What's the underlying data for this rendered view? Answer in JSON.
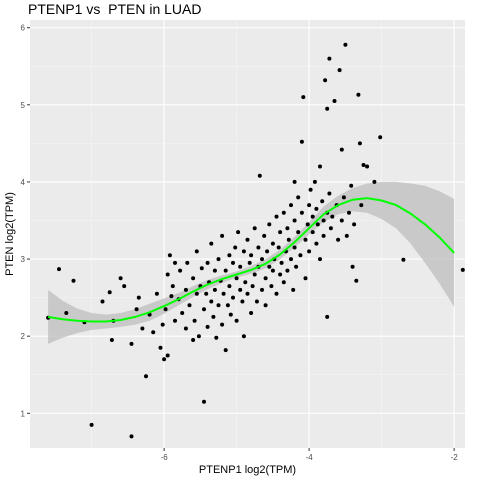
{
  "chart_data": {
    "type": "scatter",
    "title": "PTENP1 vs  PTEN in LUAD",
    "xlabel": "PTENP1 log2(TPM)",
    "ylabel": "PTEN log2(TPM)",
    "xlim": [
      -7.85,
      -1.85
    ],
    "ylim": [
      0.55,
      6.1
    ],
    "x_ticks": [
      -6,
      -4,
      -2
    ],
    "y_ticks": [
      1,
      2,
      3,
      4,
      5,
      6
    ],
    "grid": true,
    "background": "#ebebeb",
    "point_color": "#000000",
    "smooth_color": "#00ff00",
    "ribbon_color": "#bebebe",
    "smooth_x": [
      -7.6,
      -7.4,
      -7.2,
      -7.0,
      -6.8,
      -6.6,
      -6.4,
      -6.2,
      -6.0,
      -5.8,
      -5.6,
      -5.4,
      -5.2,
      -5.0,
      -4.8,
      -4.6,
      -4.4,
      -4.2,
      -4.0,
      -3.8,
      -3.6,
      -3.4,
      -3.2,
      -3.0,
      -2.8,
      -2.6,
      -2.4,
      -2.2,
      -2.0
    ],
    "smooth_y": [
      2.25,
      2.22,
      2.2,
      2.19,
      2.19,
      2.21,
      2.25,
      2.31,
      2.39,
      2.48,
      2.58,
      2.67,
      2.74,
      2.8,
      2.86,
      2.94,
      3.06,
      3.22,
      3.4,
      3.58,
      3.7,
      3.77,
      3.79,
      3.76,
      3.7,
      3.59,
      3.45,
      3.28,
      3.08
    ],
    "ribbon_lower": [
      1.9,
      1.98,
      2.04,
      2.08,
      2.1,
      2.12,
      2.15,
      2.2,
      2.29,
      2.4,
      2.51,
      2.61,
      2.69,
      2.76,
      2.81,
      2.88,
      3.0,
      3.15,
      3.32,
      3.48,
      3.58,
      3.62,
      3.6,
      3.52,
      3.4,
      3.2,
      2.95,
      2.68,
      2.38
    ],
    "ribbon_upper": [
      2.6,
      2.46,
      2.36,
      2.3,
      2.28,
      2.3,
      2.35,
      2.42,
      2.49,
      2.56,
      2.65,
      2.73,
      2.79,
      2.84,
      2.91,
      3.0,
      3.12,
      3.29,
      3.48,
      3.68,
      3.82,
      3.92,
      3.98,
      4.0,
      4.0,
      3.98,
      3.95,
      3.88,
      3.78
    ],
    "points": [
      [
        -7.6,
        2.24
      ],
      [
        -7.45,
        2.87
      ],
      [
        -7.35,
        2.3
      ],
      [
        -7.25,
        2.72
      ],
      [
        -7.1,
        2.18
      ],
      [
        -7.0,
        0.85
      ],
      [
        -6.85,
        2.45
      ],
      [
        -6.75,
        2.57
      ],
      [
        -6.72,
        1.95
      ],
      [
        -6.7,
        2.2
      ],
      [
        -6.6,
        2.75
      ],
      [
        -6.45,
        1.9
      ],
      [
        -6.45,
        0.7
      ],
      [
        -6.38,
        2.35
      ],
      [
        -6.35,
        2.5
      ],
      [
        -6.3,
        2.1
      ],
      [
        -6.25,
        1.48
      ],
      [
        -6.2,
        2.28
      ],
      [
        -6.15,
        2.05
      ],
      [
        -6.1,
        2.55
      ],
      [
        -6.05,
        1.85
      ],
      [
        -6.02,
        2.15
      ],
      [
        -6.0,
        1.7
      ],
      [
        -5.98,
        2.35
      ],
      [
        -5.95,
        1.75
      ],
      [
        -5.95,
        2.8
      ],
      [
        -5.92,
        3.05
      ],
      [
        -5.9,
        2.52
      ],
      [
        -5.88,
        2.65
      ],
      [
        -5.85,
        2.2
      ],
      [
        -5.8,
        2.48
      ],
      [
        -5.78,
        2.85
      ],
      [
        -5.75,
        2.3
      ],
      [
        -5.7,
        2.6
      ],
      [
        -5.7,
        2.1
      ],
      [
        -5.68,
        2.95
      ],
      [
        -5.65,
        2.4
      ],
      [
        -5.6,
        2.75
      ],
      [
        -5.58,
        2.2
      ],
      [
        -5.55,
        2.55
      ],
      [
        -5.55,
        3.1
      ],
      [
        -5.52,
        2.0
      ],
      [
        -5.5,
        2.65
      ],
      [
        -5.48,
        2.88
      ],
      [
        -5.45,
        2.35
      ],
      [
        -5.45,
        1.15
      ],
      [
        -5.42,
        2.55
      ],
      [
        -5.4,
        2.12
      ],
      [
        -5.4,
        2.95
      ],
      [
        -5.38,
        2.7
      ],
      [
        -5.35,
        2.45
      ],
      [
        -5.35,
        3.2
      ],
      [
        -5.32,
        2.25
      ],
      [
        -5.3,
        2.6
      ],
      [
        -5.3,
        2.85
      ],
      [
        -5.28,
        1.98
      ],
      [
        -5.25,
        3.0
      ],
      [
        -5.25,
        2.4
      ],
      [
        -5.22,
        2.72
      ],
      [
        -5.2,
        2.15
      ],
      [
        -5.2,
        3.3
      ],
      [
        -5.18,
        2.55
      ],
      [
        -5.15,
        2.85
      ],
      [
        -5.15,
        1.82
      ],
      [
        -5.12,
        2.4
      ],
      [
        -5.1,
        3.05
      ],
      [
        -5.1,
        2.65
      ],
      [
        -5.08,
        2.28
      ],
      [
        -5.05,
        2.95
      ],
      [
        -5.05,
        2.5
      ],
      [
        -5.02,
        3.15
      ],
      [
        -5.0,
        2.75
      ],
      [
        -5.0,
        2.2
      ],
      [
        -4.98,
        3.35
      ],
      [
        -4.95,
        2.6
      ],
      [
        -4.95,
        2.9
      ],
      [
        -4.92,
        2.45
      ],
      [
        -4.9,
        3.1
      ],
      [
        -4.9,
        2.0
      ],
      [
        -4.88,
        2.7
      ],
      [
        -4.85,
        3.25
      ],
      [
        -4.85,
        2.55
      ],
      [
        -4.82,
        2.95
      ],
      [
        -4.8,
        2.3
      ],
      [
        -4.8,
        3.05
      ],
      [
        -4.78,
        2.65
      ],
      [
        -4.75,
        3.4
      ],
      [
        -4.75,
        2.8
      ],
      [
        -4.72,
        2.45
      ],
      [
        -4.7,
        3.15
      ],
      [
        -4.7,
        2.9
      ],
      [
        -4.68,
        4.08
      ],
      [
        -4.65,
        2.6
      ],
      [
        -4.65,
        3.0
      ],
      [
        -4.62,
        3.3
      ],
      [
        -4.6,
        2.75
      ],
      [
        -4.6,
        2.4
      ],
      [
        -4.58,
        3.1
      ],
      [
        -4.55,
        2.9
      ],
      [
        -4.55,
        3.45
      ],
      [
        -4.52,
        2.65
      ],
      [
        -4.5,
        3.2
      ],
      [
        -4.5,
        2.85
      ],
      [
        -4.48,
        3.0
      ],
      [
        -4.45,
        3.55
      ],
      [
        -4.45,
        2.55
      ],
      [
        -4.42,
        3.15
      ],
      [
        -4.4,
        2.8
      ],
      [
        -4.4,
        3.35
      ],
      [
        -4.38,
        2.95
      ],
      [
        -4.35,
        3.6
      ],
      [
        -4.35,
        2.7
      ],
      [
        -4.32,
        3.1
      ],
      [
        -4.3,
        3.4
      ],
      [
        -4.3,
        2.85
      ],
      [
        -4.28,
        3.25
      ],
      [
        -4.25,
        3.7
      ],
      [
        -4.25,
        3.0
      ],
      [
        -4.22,
        2.6
      ],
      [
        -4.2,
        3.5
      ],
      [
        -4.2,
        3.15
      ],
      [
        -4.18,
        2.9
      ],
      [
        -4.15,
        3.35
      ],
      [
        -4.15,
        3.8
      ],
      [
        -4.12,
        3.05
      ],
      [
        -4.1,
        4.52
      ],
      [
        -4.1,
        3.6
      ],
      [
        -4.08,
        5.1
      ],
      [
        -4.05,
        3.25
      ],
      [
        -4.05,
        2.75
      ],
      [
        -4.02,
        3.45
      ],
      [
        -4.0,
        3.7
      ],
      [
        -4.0,
        3.1
      ],
      [
        -3.98,
        3.9
      ],
      [
        -3.95,
        3.35
      ],
      [
        -3.95,
        3.55
      ],
      [
        -3.92,
        4.0
      ],
      [
        -3.9,
        3.2
      ],
      [
        -3.9,
        3.65
      ],
      [
        -3.88,
        3.45
      ],
      [
        -3.85,
        4.2
      ],
      [
        -3.85,
        3.0
      ],
      [
        -3.82,
        3.75
      ],
      [
        -3.8,
        3.5
      ],
      [
        -3.8,
        3.3
      ],
      [
        -3.78,
        5.32
      ],
      [
        -3.75,
        3.6
      ],
      [
        -3.75,
        2.25
      ],
      [
        -3.72,
        3.85
      ],
      [
        -3.7,
        3.4
      ],
      [
        -3.68,
        3.55
      ],
      [
        -3.65,
        5.05
      ],
      [
        -3.62,
        3.7
      ],
      [
        -3.6,
        3.25
      ],
      [
        -3.58,
        5.45
      ],
      [
        -3.55,
        3.5
      ],
      [
        -3.55,
        4.42
      ],
      [
        -3.52,
        3.8
      ],
      [
        -3.5,
        5.78
      ],
      [
        -3.48,
        3.3
      ],
      [
        -3.45,
        3.6
      ],
      [
        -3.42,
        3.95
      ],
      [
        -3.4,
        2.9
      ],
      [
        -3.38,
        3.45
      ],
      [
        -3.35,
        2.72
      ],
      [
        -3.32,
        5.13
      ],
      [
        -3.3,
        4.5
      ],
      [
        -3.28,
        3.7
      ],
      [
        -3.25,
        4.22
      ],
      [
        -3.2,
        4.2
      ],
      [
        -3.1,
        4.0
      ],
      [
        -3.02,
        4.58
      ],
      [
        -2.7,
        2.99
      ],
      [
        -1.88,
        2.86
      ],
      [
        -3.72,
        5.6
      ],
      [
        -3.75,
        4.95
      ],
      [
        -4.2,
        4.0
      ],
      [
        -5.85,
        2.95
      ],
      [
        -6.55,
        2.65
      ],
      [
        -5.6,
        1.95
      ]
    ]
  }
}
